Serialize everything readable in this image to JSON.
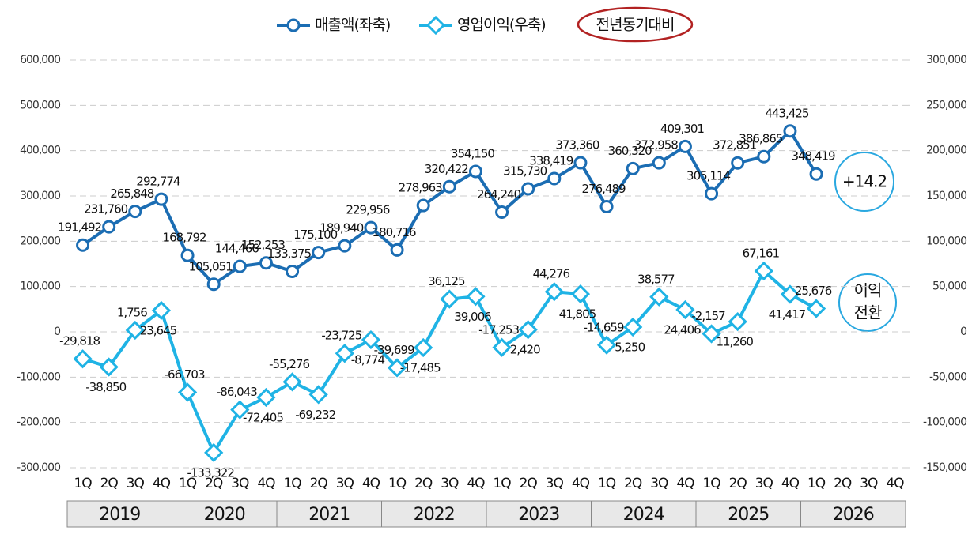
{
  "chart_data": {
    "type": "line",
    "legend": {
      "extra": "전년동기대비"
    },
    "categories": [
      "1Q",
      "2Q",
      "3Q",
      "4Q",
      "1Q",
      "2Q",
      "3Q",
      "4Q",
      "1Q",
      "2Q",
      "3Q",
      "4Q",
      "1Q",
      "2Q",
      "3Q",
      "4Q",
      "1Q",
      "2Q",
      "3Q",
      "4Q",
      "1Q",
      "2Q",
      "3Q",
      "4Q",
      "1Q",
      "2Q",
      "3Q",
      "4Q",
      "1Q",
      "2Q",
      "3Q",
      "4Q"
    ],
    "years": [
      "2019",
      "2020",
      "2021",
      "2022",
      "2023",
      "2024",
      "2025",
      "2026"
    ],
    "series": [
      {
        "name": "매출액(좌축)",
        "color": "#1b6db3",
        "marker": "circle",
        "axis": "y",
        "values": [
          191492,
          231760,
          265848,
          292774,
          168792,
          105051,
          144466,
          152253,
          133375,
          175100,
          189940,
          229956,
          180716,
          278963,
          320422,
          354150,
          264240,
          315730,
          338419,
          373360,
          276489,
          360320,
          372958,
          409301,
          305114,
          372851,
          386865,
          443425,
          348419,
          null,
          null,
          null
        ],
        "value_labels": [
          "191,492",
          "231,760",
          "265,848",
          "292,774",
          "168,792",
          "105,051",
          "144,466",
          "152,253",
          "133,375",
          "175,100",
          "189,940",
          "229,956",
          "180,716",
          "278,963",
          "320,422",
          "354,150",
          "264,240",
          "315,730",
          "338,419",
          "373,360",
          "276,489",
          "360,320",
          "372,958",
          "409,301",
          "305,114",
          "372,851",
          "386,865",
          "443,425",
          "348,419",
          null,
          null,
          null
        ]
      },
      {
        "name": "영업이익(우축)",
        "color": "#1fb3e5",
        "marker": "diamond",
        "axis": "y2",
        "values": [
          -29818,
          -38850,
          1756,
          23645,
          -66703,
          -133322,
          -86043,
          -72405,
          -55276,
          -69232,
          -23725,
          -8774,
          -39699,
          -17485,
          36125,
          39006,
          -17253,
          2420,
          44276,
          41805,
          -14659,
          5250,
          38577,
          24406,
          -2157,
          11260,
          67161,
          41417,
          25676,
          null,
          null,
          null
        ],
        "value_labels": [
          "-29,818",
          "-38,850",
          "1,756",
          "23,645",
          "-66,703",
          "-133,322",
          "-86,043",
          "-72,405",
          "-55,276",
          "-69,232",
          "-23,725",
          "-8,774",
          "-39,699",
          "-17,485",
          "36,125",
          "39,006",
          "-17,253",
          "2,420",
          "44,276",
          "41,805",
          "-14,659",
          "5,250",
          "38,577",
          "24,406",
          "-2,157",
          "11,260",
          "67,161",
          "41,417",
          "25,676",
          null,
          null,
          null
        ]
      }
    ],
    "ylim": [
      -300000,
      600000
    ],
    "yticks": [
      {
        "value": -300000,
        "label": "-300,000"
      },
      {
        "value": -200000,
        "label": "-200,000"
      },
      {
        "value": -100000,
        "label": "-100,000"
      },
      0,
      {
        "value": 100000,
        "label": "100,000"
      },
      {
        "value": 200000,
        "label": "200,000"
      },
      {
        "value": 300000,
        "label": "300,000"
      },
      {
        "value": 400000,
        "label": "400,000"
      },
      {
        "value": 500000,
        "label": "500,000"
      },
      {
        "value": 600000,
        "label": "600,000"
      }
    ],
    "y2lim": [
      -150000,
      300000
    ],
    "y2ticks": [
      {
        "value": -150000,
        "label": "-150,000"
      },
      {
        "value": -100000,
        "label": "-100,000"
      },
      {
        "value": -50000,
        "label": "-50,000"
      },
      0,
      {
        "value": 50000,
        "label": "50,000"
      },
      {
        "value": 100000,
        "label": "100,000"
      },
      {
        "value": 150000,
        "label": "150,000"
      },
      {
        "value": 200000,
        "label": "200,000"
      },
      {
        "value": 250000,
        "label": "250,000"
      },
      {
        "value": 300000,
        "label": "300,000"
      }
    ],
    "grid": true,
    "annotations": [
      {
        "text": "+14.2"
      },
      {
        "lines": [
          "이익",
          "전환"
        ]
      }
    ]
  }
}
